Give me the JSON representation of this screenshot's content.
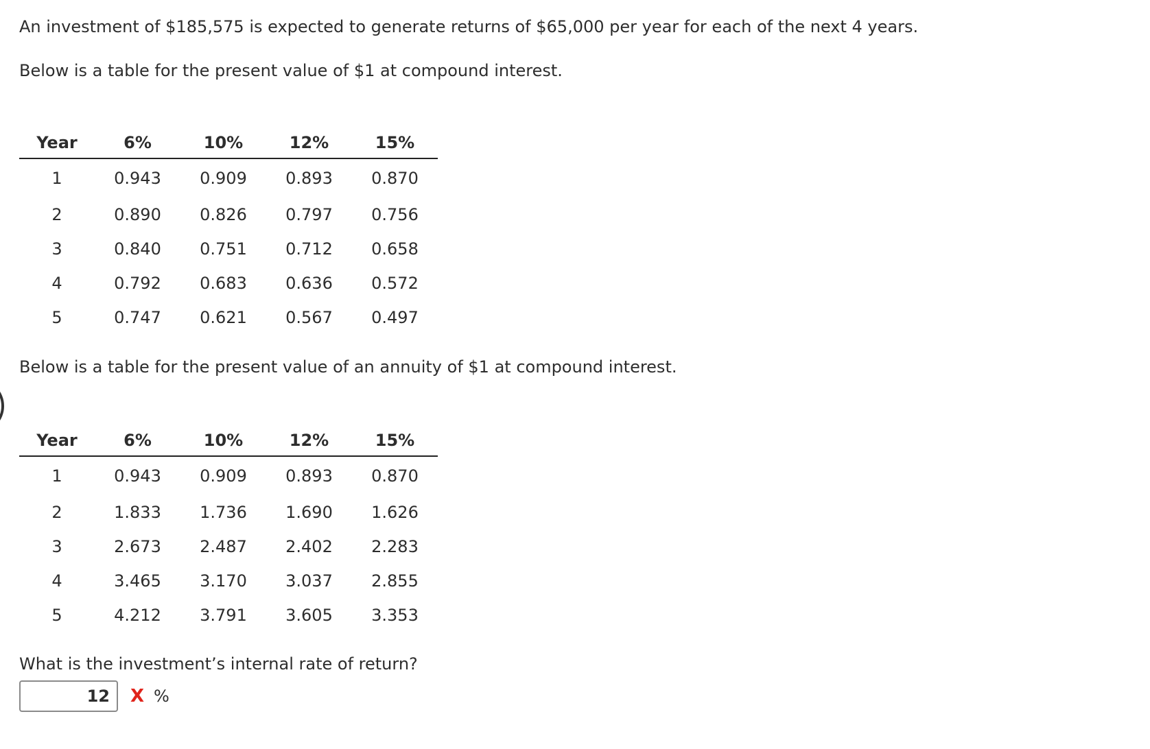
{
  "question": {
    "intro": "An investment of $185,575 is expected to generate returns of $65,000 per year for each of the next 4 years.",
    "pv_caption": "Below is a table for the present value of $1 at compound interest.",
    "annuity_caption": "Below is a table for the present value of an annuity of $1 at compound interest.",
    "prompt": "What is the investment’s internal rate of return?"
  },
  "pv_table": {
    "headers": [
      "Year",
      "6%",
      "10%",
      "12%",
      "15%"
    ],
    "rows": [
      [
        "1",
        "0.943",
        "0.909",
        "0.893",
        "0.870"
      ],
      [
        "2",
        "0.890",
        "0.826",
        "0.797",
        "0.756"
      ],
      [
        "3",
        "0.840",
        "0.751",
        "0.712",
        "0.658"
      ],
      [
        "4",
        "0.792",
        "0.683",
        "0.636",
        "0.572"
      ],
      [
        "5",
        "0.747",
        "0.621",
        "0.567",
        "0.497"
      ]
    ]
  },
  "annuity_table": {
    "headers": [
      "Year",
      "6%",
      "10%",
      "12%",
      "15%"
    ],
    "rows": [
      [
        "1",
        "0.943",
        "0.909",
        "0.893",
        "0.870"
      ],
      [
        "2",
        "1.833",
        "1.736",
        "1.690",
        "1.626"
      ],
      [
        "3",
        "2.673",
        "2.487",
        "2.402",
        "2.283"
      ],
      [
        "4",
        "3.465",
        "3.170",
        "3.037",
        "2.855"
      ],
      [
        "5",
        "4.212",
        "3.791",
        "3.605",
        "3.353"
      ]
    ]
  },
  "answer": {
    "value": "12",
    "mark": "X",
    "unit": "%",
    "mark_color": "#e0241b"
  }
}
